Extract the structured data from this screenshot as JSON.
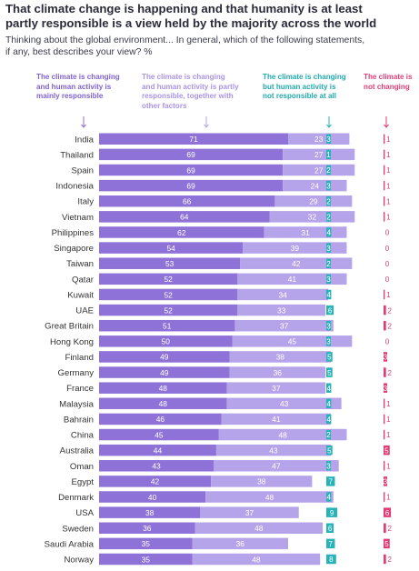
{
  "title": "That climate change is happening and that humanity is at least\npartly responsible is a view held by the majority across the world",
  "subtitle": "Thinking about the global environment... In general, which of the following statements,\nif any, best describes your view? %",
  "colors": {
    "mainly": "#8e72d8",
    "partly": "#b6a4ea",
    "not_responsible": "#28b3b8",
    "not_changing": "#e03c76",
    "title_text": "#2a2a3a"
  },
  "chart_data": {
    "type": "bar",
    "orientation": "horizontal",
    "stacked": true,
    "xlim": [
      0,
      100
    ],
    "categories": [
      "India",
      "Thailand",
      "Spain",
      "Indonesia",
      "Italy",
      "Vietnam",
      "Philippines",
      "Singapore",
      "Taiwan",
      "Qatar",
      "Kuwait",
      "UAE",
      "Great Britain",
      "Hong Kong",
      "Finland",
      "Germany",
      "France",
      "Malaysia",
      "Bahrain",
      "China",
      "Australia",
      "Oman",
      "Egypt",
      "Denmark",
      "USA",
      "Sweden",
      "Saudi Arabia",
      "Norway"
    ],
    "series": [
      {
        "name": "The climate is changing\nand human activity is\nmainly responsible",
        "values": [
          71,
          69,
          69,
          69,
          66,
          64,
          62,
          54,
          53,
          52,
          52,
          52,
          51,
          50,
          49,
          49,
          48,
          48,
          46,
          45,
          44,
          43,
          42,
          40,
          38,
          36,
          35,
          35
        ]
      },
      {
        "name": "The climate is changing\nand human activity is partly\nresponsible, together with\nother factors",
        "values": [
          23,
          27,
          27,
          24,
          29,
          32,
          31,
          39,
          42,
          41,
          34,
          33,
          37,
          45,
          38,
          36,
          37,
          43,
          41,
          48,
          43,
          47,
          38,
          48,
          37,
          48,
          36,
          48
        ]
      },
      {
        "name": "The climate is changing\nbut human activity is\nnot responsible at all",
        "values": [
          3,
          1,
          2,
          3,
          2,
          2,
          4,
          3,
          2,
          3,
          4,
          6,
          3,
          3,
          5,
          5,
          4,
          4,
          4,
          2,
          5,
          3,
          7,
          4,
          9,
          6,
          7,
          8
        ]
      },
      {
        "name": "The climate is\nnot changing",
        "values": [
          1,
          1,
          1,
          1,
          1,
          1,
          0,
          0,
          0,
          0,
          1,
          2,
          2,
          0,
          3,
          2,
          3,
          1,
          1,
          1,
          5,
          1,
          3,
          1,
          6,
          2,
          5,
          2
        ]
      }
    ]
  }
}
